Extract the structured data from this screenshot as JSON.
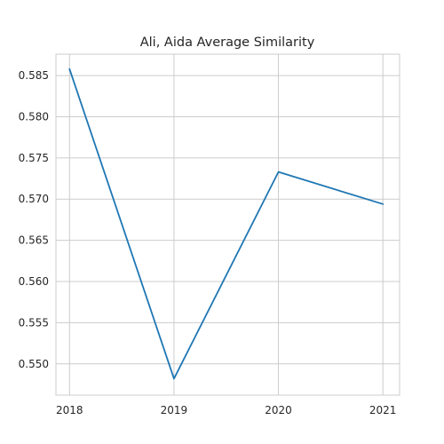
{
  "chart_data": {
    "type": "line",
    "title": "Ali, Aida Average Similarity",
    "xlabel": "",
    "ylabel": "",
    "x": [
      2018,
      2019,
      2020,
      2021
    ],
    "x_tick_labels": [
      "2018",
      "2019",
      "2020",
      "2021"
    ],
    "y_tick_values": [
      0.55,
      0.555,
      0.56,
      0.565,
      0.57,
      0.575,
      0.58,
      0.585
    ],
    "y_tick_labels": [
      "0.550",
      "0.555",
      "0.560",
      "0.565",
      "0.570",
      "0.575",
      "0.580",
      "0.585"
    ],
    "series": [
      {
        "values": [
          0.5858,
          0.5482,
          0.5733,
          0.5694
        ],
        "color": "#1f77b4"
      }
    ],
    "xlim": [
      2017.87,
      2021.16
    ],
    "ylim": [
      0.5462,
      0.5876
    ],
    "grid": true,
    "legend": "none",
    "style": {
      "background": "#ffffff",
      "grid_color": "#cccccc",
      "axis_edge_color": "#cccccc",
      "text_color": "#262626"
    }
  }
}
